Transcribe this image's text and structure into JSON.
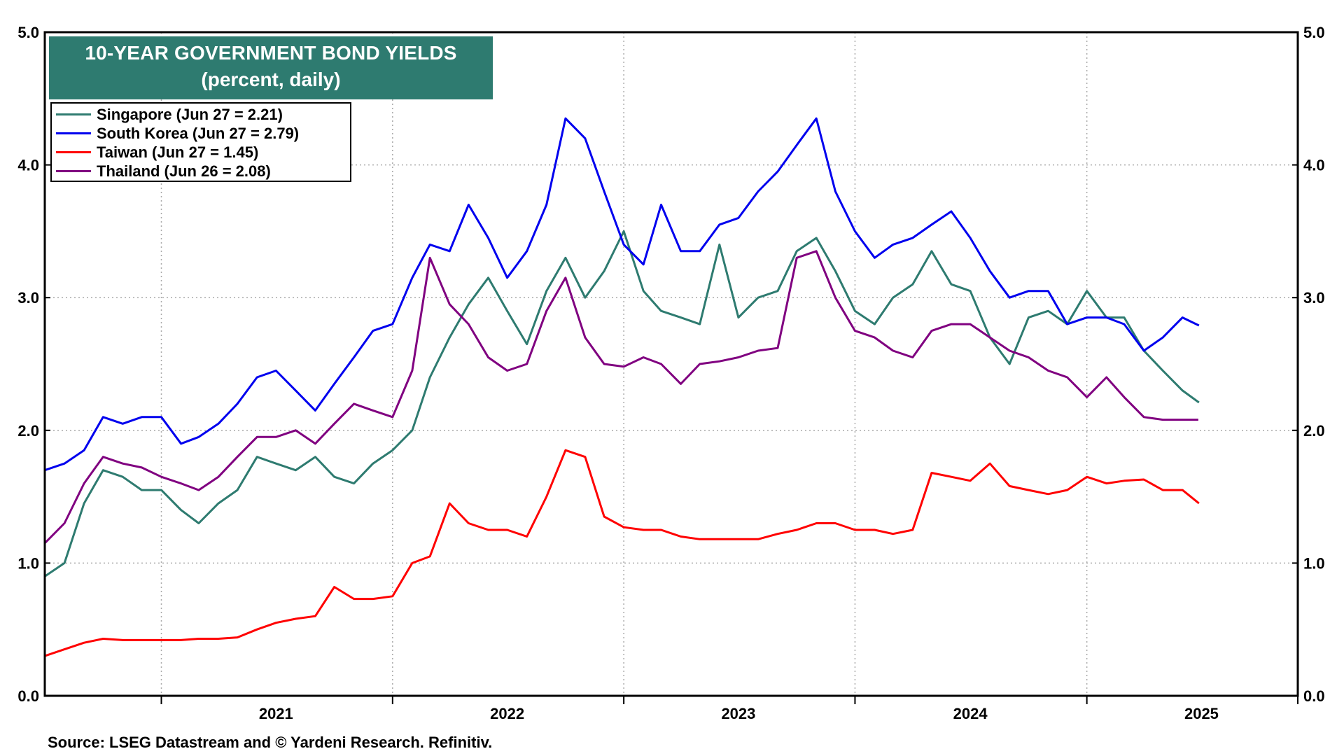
{
  "chart_data": {
    "type": "line",
    "title": "10-YEAR GOVERNMENT BOND YIELDS",
    "subtitle": "(percent, daily)",
    "source": "Source: LSEG Datastream and © Yardeni Research. Refinitiv.",
    "ylim": [
      0,
      5
    ],
    "yticks": [
      "0.0",
      "1.0",
      "2.0",
      "3.0",
      "4.0",
      "5.0"
    ],
    "xlim": [
      "2020-07-01",
      "2025-11-30"
    ],
    "xticks": [
      {
        "label": "2021",
        "date": "2021-01-01",
        "center": "2021-07-01"
      },
      {
        "label": "2022",
        "date": "2022-01-01",
        "center": "2022-07-01"
      },
      {
        "label": "2023",
        "date": "2023-01-01",
        "center": "2023-07-01"
      },
      {
        "label": "2024",
        "date": "2024-01-01",
        "center": "2024-07-01"
      },
      {
        "label": "2025",
        "date": "2025-01-01",
        "center": "2025-07-01"
      }
    ],
    "grid": true,
    "legend_position": "top-left",
    "series": [
      {
        "name": "Singapore (Jun 27 = 2.21)",
        "color": "#2e7b70",
        "points": [
          [
            "2020-07-01",
            0.9
          ],
          [
            "2020-08-01",
            1.0
          ],
          [
            "2020-09-01",
            1.45
          ],
          [
            "2020-10-01",
            1.7
          ],
          [
            "2020-11-01",
            1.65
          ],
          [
            "2020-12-01",
            1.55
          ],
          [
            "2021-01-01",
            1.55
          ],
          [
            "2021-02-01",
            1.4
          ],
          [
            "2021-03-01",
            1.3
          ],
          [
            "2021-04-01",
            1.45
          ],
          [
            "2021-05-01",
            1.55
          ],
          [
            "2021-06-01",
            1.8
          ],
          [
            "2021-07-01",
            1.75
          ],
          [
            "2021-08-01",
            1.7
          ],
          [
            "2021-09-01",
            1.8
          ],
          [
            "2021-10-01",
            1.65
          ],
          [
            "2021-11-01",
            1.6
          ],
          [
            "2021-12-01",
            1.75
          ],
          [
            "2022-01-01",
            1.85
          ],
          [
            "2022-02-01",
            2.0
          ],
          [
            "2022-03-01",
            2.4
          ],
          [
            "2022-04-01",
            2.7
          ],
          [
            "2022-05-01",
            2.95
          ],
          [
            "2022-06-01",
            3.15
          ],
          [
            "2022-07-01",
            2.9
          ],
          [
            "2022-08-01",
            2.65
          ],
          [
            "2022-09-01",
            3.05
          ],
          [
            "2022-10-01",
            3.3
          ],
          [
            "2022-11-01",
            3.0
          ],
          [
            "2022-12-01",
            3.2
          ],
          [
            "2023-01-01",
            3.5
          ],
          [
            "2023-02-01",
            3.05
          ],
          [
            "2023-03-01",
            2.9
          ],
          [
            "2023-04-01",
            2.85
          ],
          [
            "2023-05-01",
            2.8
          ],
          [
            "2023-06-01",
            3.4
          ],
          [
            "2023-07-01",
            2.85
          ],
          [
            "2023-08-01",
            3.0
          ],
          [
            "2023-09-01",
            3.05
          ],
          [
            "2023-10-01",
            3.35
          ],
          [
            "2023-11-01",
            3.45
          ],
          [
            "2023-12-01",
            3.2
          ],
          [
            "2024-01-01",
            2.9
          ],
          [
            "2024-02-01",
            2.8
          ],
          [
            "2024-03-01",
            3.0
          ],
          [
            "2024-04-01",
            3.1
          ],
          [
            "2024-05-01",
            3.35
          ],
          [
            "2024-06-01",
            3.1
          ],
          [
            "2024-07-01",
            3.05
          ],
          [
            "2024-08-01",
            2.7
          ],
          [
            "2024-09-01",
            2.5
          ],
          [
            "2024-10-01",
            2.85
          ],
          [
            "2024-11-01",
            2.9
          ],
          [
            "2024-12-01",
            2.8
          ],
          [
            "2025-01-01",
            3.05
          ],
          [
            "2025-02-01",
            2.85
          ],
          [
            "2025-03-01",
            2.85
          ],
          [
            "2025-04-01",
            2.6
          ],
          [
            "2025-05-01",
            2.45
          ],
          [
            "2025-06-01",
            2.3
          ],
          [
            "2025-06-27",
            2.21
          ]
        ]
      },
      {
        "name": "South Korea (Jun 27 = 2.79)",
        "color": "#0000ee",
        "points": [
          [
            "2020-07-01",
            1.7
          ],
          [
            "2020-08-01",
            1.75
          ],
          [
            "2020-09-01",
            1.85
          ],
          [
            "2020-10-01",
            2.1
          ],
          [
            "2020-11-01",
            2.05
          ],
          [
            "2020-12-01",
            2.1
          ],
          [
            "2021-01-01",
            2.1
          ],
          [
            "2021-02-01",
            1.9
          ],
          [
            "2021-03-01",
            1.95
          ],
          [
            "2021-04-01",
            2.05
          ],
          [
            "2021-05-01",
            2.2
          ],
          [
            "2021-06-01",
            2.4
          ],
          [
            "2021-07-01",
            2.45
          ],
          [
            "2021-08-01",
            2.3
          ],
          [
            "2021-09-01",
            2.15
          ],
          [
            "2021-10-01",
            2.35
          ],
          [
            "2021-11-01",
            2.55
          ],
          [
            "2021-12-01",
            2.75
          ],
          [
            "2022-01-01",
            2.8
          ],
          [
            "2022-02-01",
            3.15
          ],
          [
            "2022-03-01",
            3.4
          ],
          [
            "2022-04-01",
            3.35
          ],
          [
            "2022-05-01",
            3.7
          ],
          [
            "2022-06-01",
            3.45
          ],
          [
            "2022-07-01",
            3.15
          ],
          [
            "2022-08-01",
            3.35
          ],
          [
            "2022-09-01",
            3.7
          ],
          [
            "2022-10-01",
            4.35
          ],
          [
            "2022-11-01",
            4.2
          ],
          [
            "2022-12-01",
            3.8
          ],
          [
            "2023-01-01",
            3.4
          ],
          [
            "2023-02-01",
            3.25
          ],
          [
            "2023-03-01",
            3.7
          ],
          [
            "2023-04-01",
            3.35
          ],
          [
            "2023-05-01",
            3.35
          ],
          [
            "2023-06-01",
            3.55
          ],
          [
            "2023-07-01",
            3.6
          ],
          [
            "2023-08-01",
            3.8
          ],
          [
            "2023-09-01",
            3.95
          ],
          [
            "2023-10-01",
            4.15
          ],
          [
            "2023-11-01",
            4.35
          ],
          [
            "2023-12-01",
            3.8
          ],
          [
            "2024-01-01",
            3.5
          ],
          [
            "2024-02-01",
            3.3
          ],
          [
            "2024-03-01",
            3.4
          ],
          [
            "2024-04-01",
            3.45
          ],
          [
            "2024-05-01",
            3.55
          ],
          [
            "2024-06-01",
            3.65
          ],
          [
            "2024-07-01",
            3.45
          ],
          [
            "2024-08-01",
            3.2
          ],
          [
            "2024-09-01",
            3.0
          ],
          [
            "2024-10-01",
            3.05
          ],
          [
            "2024-11-01",
            3.05
          ],
          [
            "2024-12-01",
            2.8
          ],
          [
            "2025-01-01",
            2.85
          ],
          [
            "2025-02-01",
            2.85
          ],
          [
            "2025-03-01",
            2.8
          ],
          [
            "2025-04-01",
            2.6
          ],
          [
            "2025-05-01",
            2.7
          ],
          [
            "2025-06-01",
            2.85
          ],
          [
            "2025-06-27",
            2.79
          ]
        ]
      },
      {
        "name": "Taiwan (Jun 27 = 1.45)",
        "color": "#ff0000",
        "points": [
          [
            "2020-07-01",
            0.3
          ],
          [
            "2020-08-01",
            0.35
          ],
          [
            "2020-09-01",
            0.4
          ],
          [
            "2020-10-01",
            0.43
          ],
          [
            "2020-11-01",
            0.42
          ],
          [
            "2020-12-01",
            0.42
          ],
          [
            "2021-01-01",
            0.42
          ],
          [
            "2021-02-01",
            0.42
          ],
          [
            "2021-03-01",
            0.43
          ],
          [
            "2021-04-01",
            0.43
          ],
          [
            "2021-05-01",
            0.44
          ],
          [
            "2021-06-01",
            0.5
          ],
          [
            "2021-07-01",
            0.55
          ],
          [
            "2021-08-01",
            0.58
          ],
          [
            "2021-09-01",
            0.6
          ],
          [
            "2021-10-01",
            0.82
          ],
          [
            "2021-11-01",
            0.73
          ],
          [
            "2021-12-01",
            0.73
          ],
          [
            "2022-01-01",
            0.75
          ],
          [
            "2022-02-01",
            1.0
          ],
          [
            "2022-03-01",
            1.05
          ],
          [
            "2022-04-01",
            1.45
          ],
          [
            "2022-05-01",
            1.3
          ],
          [
            "2022-06-01",
            1.25
          ],
          [
            "2022-07-01",
            1.25
          ],
          [
            "2022-08-01",
            1.2
          ],
          [
            "2022-09-01",
            1.5
          ],
          [
            "2022-10-01",
            1.85
          ],
          [
            "2022-11-01",
            1.8
          ],
          [
            "2022-12-01",
            1.35
          ],
          [
            "2023-01-01",
            1.27
          ],
          [
            "2023-02-01",
            1.25
          ],
          [
            "2023-03-01",
            1.25
          ],
          [
            "2023-04-01",
            1.2
          ],
          [
            "2023-05-01",
            1.18
          ],
          [
            "2023-06-01",
            1.18
          ],
          [
            "2023-07-01",
            1.18
          ],
          [
            "2023-08-01",
            1.18
          ],
          [
            "2023-09-01",
            1.22
          ],
          [
            "2023-10-01",
            1.25
          ],
          [
            "2023-11-01",
            1.3
          ],
          [
            "2023-12-01",
            1.3
          ],
          [
            "2024-01-01",
            1.25
          ],
          [
            "2024-02-01",
            1.25
          ],
          [
            "2024-03-01",
            1.22
          ],
          [
            "2024-04-01",
            1.25
          ],
          [
            "2024-05-01",
            1.68
          ],
          [
            "2024-06-01",
            1.65
          ],
          [
            "2024-07-01",
            1.62
          ],
          [
            "2024-08-01",
            1.75
          ],
          [
            "2024-09-01",
            1.58
          ],
          [
            "2024-10-01",
            1.55
          ],
          [
            "2024-11-01",
            1.52
          ],
          [
            "2024-12-01",
            1.55
          ],
          [
            "2025-01-01",
            1.65
          ],
          [
            "2025-02-01",
            1.6
          ],
          [
            "2025-03-01",
            1.62
          ],
          [
            "2025-04-01",
            1.63
          ],
          [
            "2025-05-01",
            1.55
          ],
          [
            "2025-06-01",
            1.55
          ],
          [
            "2025-06-27",
            1.45
          ]
        ]
      },
      {
        "name": "Thailand (Jun 26 = 2.08)",
        "color": "#800080",
        "points": [
          [
            "2020-07-01",
            1.15
          ],
          [
            "2020-08-01",
            1.3
          ],
          [
            "2020-09-01",
            1.6
          ],
          [
            "2020-10-01",
            1.8
          ],
          [
            "2020-11-01",
            1.75
          ],
          [
            "2020-12-01",
            1.72
          ],
          [
            "2021-01-01",
            1.65
          ],
          [
            "2021-02-01",
            1.6
          ],
          [
            "2021-03-01",
            1.55
          ],
          [
            "2021-04-01",
            1.65
          ],
          [
            "2021-05-01",
            1.8
          ],
          [
            "2021-06-01",
            1.95
          ],
          [
            "2021-07-01",
            1.95
          ],
          [
            "2021-08-01",
            2.0
          ],
          [
            "2021-09-01",
            1.9
          ],
          [
            "2021-10-01",
            2.05
          ],
          [
            "2021-11-01",
            2.2
          ],
          [
            "2021-12-01",
            2.15
          ],
          [
            "2022-01-01",
            2.1
          ],
          [
            "2022-02-01",
            2.45
          ],
          [
            "2022-03-01",
            3.3
          ],
          [
            "2022-04-01",
            2.95
          ],
          [
            "2022-05-01",
            2.8
          ],
          [
            "2022-06-01",
            2.55
          ],
          [
            "2022-07-01",
            2.45
          ],
          [
            "2022-08-01",
            2.5
          ],
          [
            "2022-09-01",
            2.9
          ],
          [
            "2022-10-01",
            3.15
          ],
          [
            "2022-11-01",
            2.7
          ],
          [
            "2022-12-01",
            2.5
          ],
          [
            "2023-01-01",
            2.48
          ],
          [
            "2023-02-01",
            2.55
          ],
          [
            "2023-03-01",
            2.5
          ],
          [
            "2023-04-01",
            2.35
          ],
          [
            "2023-05-01",
            2.5
          ],
          [
            "2023-06-01",
            2.52
          ],
          [
            "2023-07-01",
            2.55
          ],
          [
            "2023-08-01",
            2.6
          ],
          [
            "2023-09-01",
            2.62
          ],
          [
            "2023-10-01",
            3.3
          ],
          [
            "2023-11-01",
            3.35
          ],
          [
            "2023-12-01",
            3.0
          ],
          [
            "2024-01-01",
            2.75
          ],
          [
            "2024-02-01",
            2.7
          ],
          [
            "2024-03-01",
            2.6
          ],
          [
            "2024-04-01",
            2.55
          ],
          [
            "2024-05-01",
            2.75
          ],
          [
            "2024-06-01",
            2.8
          ],
          [
            "2024-07-01",
            2.8
          ],
          [
            "2024-08-01",
            2.7
          ],
          [
            "2024-09-01",
            2.6
          ],
          [
            "2024-10-01",
            2.55
          ],
          [
            "2024-11-01",
            2.45
          ],
          [
            "2024-12-01",
            2.4
          ],
          [
            "2025-01-01",
            2.25
          ],
          [
            "2025-02-01",
            2.4
          ],
          [
            "2025-03-01",
            2.25
          ],
          [
            "2025-04-01",
            2.1
          ],
          [
            "2025-05-01",
            2.08
          ],
          [
            "2025-06-01",
            2.08
          ],
          [
            "2025-06-26",
            2.08
          ]
        ]
      }
    ]
  }
}
